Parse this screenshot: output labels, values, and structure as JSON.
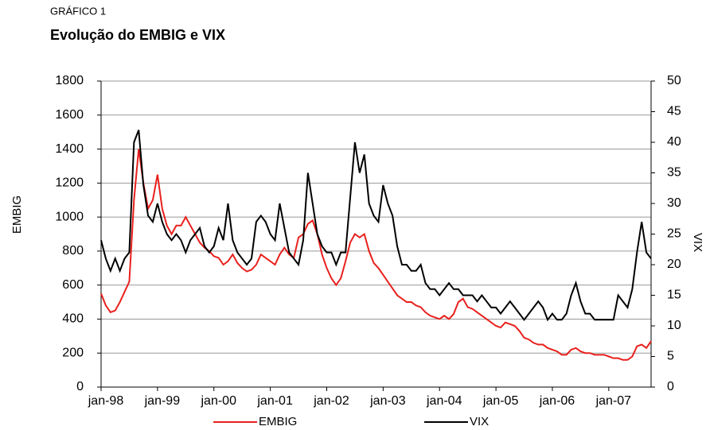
{
  "chart_data": {
    "type": "line",
    "supertitle": "GRÁFICO 1",
    "title": "Evolução do EMBIG e VIX",
    "ylabel": "EMBIG",
    "y2label": "VIX",
    "x": [
      "1998-01",
      "1998-02",
      "1998-03",
      "1998-04",
      "1998-05",
      "1998-06",
      "1998-07",
      "1998-08",
      "1998-09",
      "1998-10",
      "1998-11",
      "1998-12",
      "1999-01",
      "1999-02",
      "1999-03",
      "1999-04",
      "1999-05",
      "1999-06",
      "1999-07",
      "1999-08",
      "1999-09",
      "1999-10",
      "1999-11",
      "1999-12",
      "2000-01",
      "2000-02",
      "2000-03",
      "2000-04",
      "2000-05",
      "2000-06",
      "2000-07",
      "2000-08",
      "2000-09",
      "2000-10",
      "2000-11",
      "2000-12",
      "2001-01",
      "2001-02",
      "2001-03",
      "2001-04",
      "2001-05",
      "2001-06",
      "2001-07",
      "2001-08",
      "2001-09",
      "2001-10",
      "2001-11",
      "2001-12",
      "2002-01",
      "2002-02",
      "2002-03",
      "2002-04",
      "2002-05",
      "2002-06",
      "2002-07",
      "2002-08",
      "2002-09",
      "2002-10",
      "2002-11",
      "2002-12",
      "2003-01",
      "2003-02",
      "2003-03",
      "2003-04",
      "2003-05",
      "2003-06",
      "2003-07",
      "2003-08",
      "2003-09",
      "2003-10",
      "2003-11",
      "2003-12",
      "2004-01",
      "2004-02",
      "2004-03",
      "2004-04",
      "2004-05",
      "2004-06",
      "2004-07",
      "2004-08",
      "2004-09",
      "2004-10",
      "2004-11",
      "2004-12",
      "2005-01",
      "2005-02",
      "2005-03",
      "2005-04",
      "2005-05",
      "2005-06",
      "2005-07",
      "2005-08",
      "2005-09",
      "2005-10",
      "2005-11",
      "2005-12",
      "2006-01",
      "2006-02",
      "2006-03",
      "2006-04",
      "2006-05",
      "2006-06",
      "2006-07",
      "2006-08",
      "2006-09",
      "2006-10",
      "2006-11",
      "2006-12",
      "2007-01",
      "2007-02",
      "2007-03",
      "2007-04",
      "2007-05",
      "2007-06",
      "2007-07",
      "2007-08",
      "2007-09",
      "2007-10"
    ],
    "series": [
      {
        "name": "EMBIG",
        "color": "#e8201c",
        "values": [
          550,
          480,
          440,
          450,
          500,
          560,
          620,
          1100,
          1400,
          1200,
          1050,
          1100,
          1250,
          1050,
          950,
          900,
          950,
          950,
          1000,
          950,
          900,
          850,
          820,
          800,
          770,
          760,
          720,
          740,
          780,
          730,
          700,
          680,
          690,
          720,
          780,
          760,
          740,
          720,
          780,
          820,
          780,
          760,
          880,
          900,
          960,
          980,
          900,
          780,
          700,
          640,
          600,
          640,
          740,
          850,
          900,
          880,
          900,
          800,
          730,
          700,
          660,
          620,
          580,
          540,
          520,
          500,
          500,
          480,
          470,
          440,
          420,
          410,
          400,
          420,
          400,
          430,
          500,
          520,
          470,
          460,
          440,
          420,
          400,
          380,
          360,
          350,
          380,
          370,
          360,
          330,
          290,
          280,
          260,
          250,
          250,
          230,
          220,
          210,
          190,
          190,
          220,
          230,
          210,
          200,
          200,
          190,
          190,
          190,
          180,
          170,
          170,
          160,
          160,
          180,
          240,
          250,
          230,
          270
        ]
      },
      {
        "name": "VIX",
        "color": "#000000",
        "axis": "y2",
        "values": [
          24,
          21,
          19,
          21,
          19,
          21,
          22,
          40,
          42,
          33,
          28,
          27,
          30,
          27,
          25,
          24,
          25,
          24,
          22,
          24,
          25,
          26,
          23,
          22,
          23,
          26,
          24,
          30,
          24,
          22,
          21,
          20,
          21,
          27,
          28,
          27,
          25,
          24,
          30,
          26,
          22,
          21,
          20,
          24,
          35,
          30,
          25,
          23,
          22,
          22,
          20,
          22,
          22,
          31,
          40,
          35,
          38,
          30,
          28,
          27,
          33,
          30,
          28,
          23,
          20,
          20,
          19,
          19,
          20,
          17,
          16,
          16,
          15,
          16,
          17,
          16,
          16,
          15,
          15,
          15,
          14,
          15,
          14,
          13,
          13,
          12,
          13,
          14,
          13,
          12,
          11,
          12,
          13,
          14,
          13,
          11,
          12,
          11,
          11,
          12,
          15,
          17,
          14,
          12,
          12,
          11,
          11,
          11,
          11,
          11,
          15,
          14,
          13,
          16,
          22,
          27,
          22,
          21
        ]
      }
    ],
    "xlim": [
      "1998-01",
      "2007-10"
    ],
    "xticks": [
      {
        "value": "1998-01",
        "label": "jan-98"
      },
      {
        "value": "1999-01",
        "label": "jan-99"
      },
      {
        "value": "2000-01",
        "label": "jan-00"
      },
      {
        "value": "2001-01",
        "label": "jan-01"
      },
      {
        "value": "2002-01",
        "label": "jan-02"
      },
      {
        "value": "2003-01",
        "label": "jan-03"
      },
      {
        "value": "2004-01",
        "label": "jan-04"
      },
      {
        "value": "2005-01",
        "label": "jan-05"
      },
      {
        "value": "2006-01",
        "label": "jan-06"
      },
      {
        "value": "2007-01",
        "label": "jan-07"
      }
    ],
    "ylim": [
      0,
      1800
    ],
    "yticks": [
      0,
      200,
      400,
      600,
      800,
      1000,
      1200,
      1400,
      1600,
      1800
    ],
    "y2lim": [
      0,
      50
    ],
    "y2ticks": [
      0,
      5,
      10,
      15,
      20,
      25,
      30,
      35,
      40,
      45,
      50
    ],
    "grid": true,
    "legend": "bottom"
  }
}
